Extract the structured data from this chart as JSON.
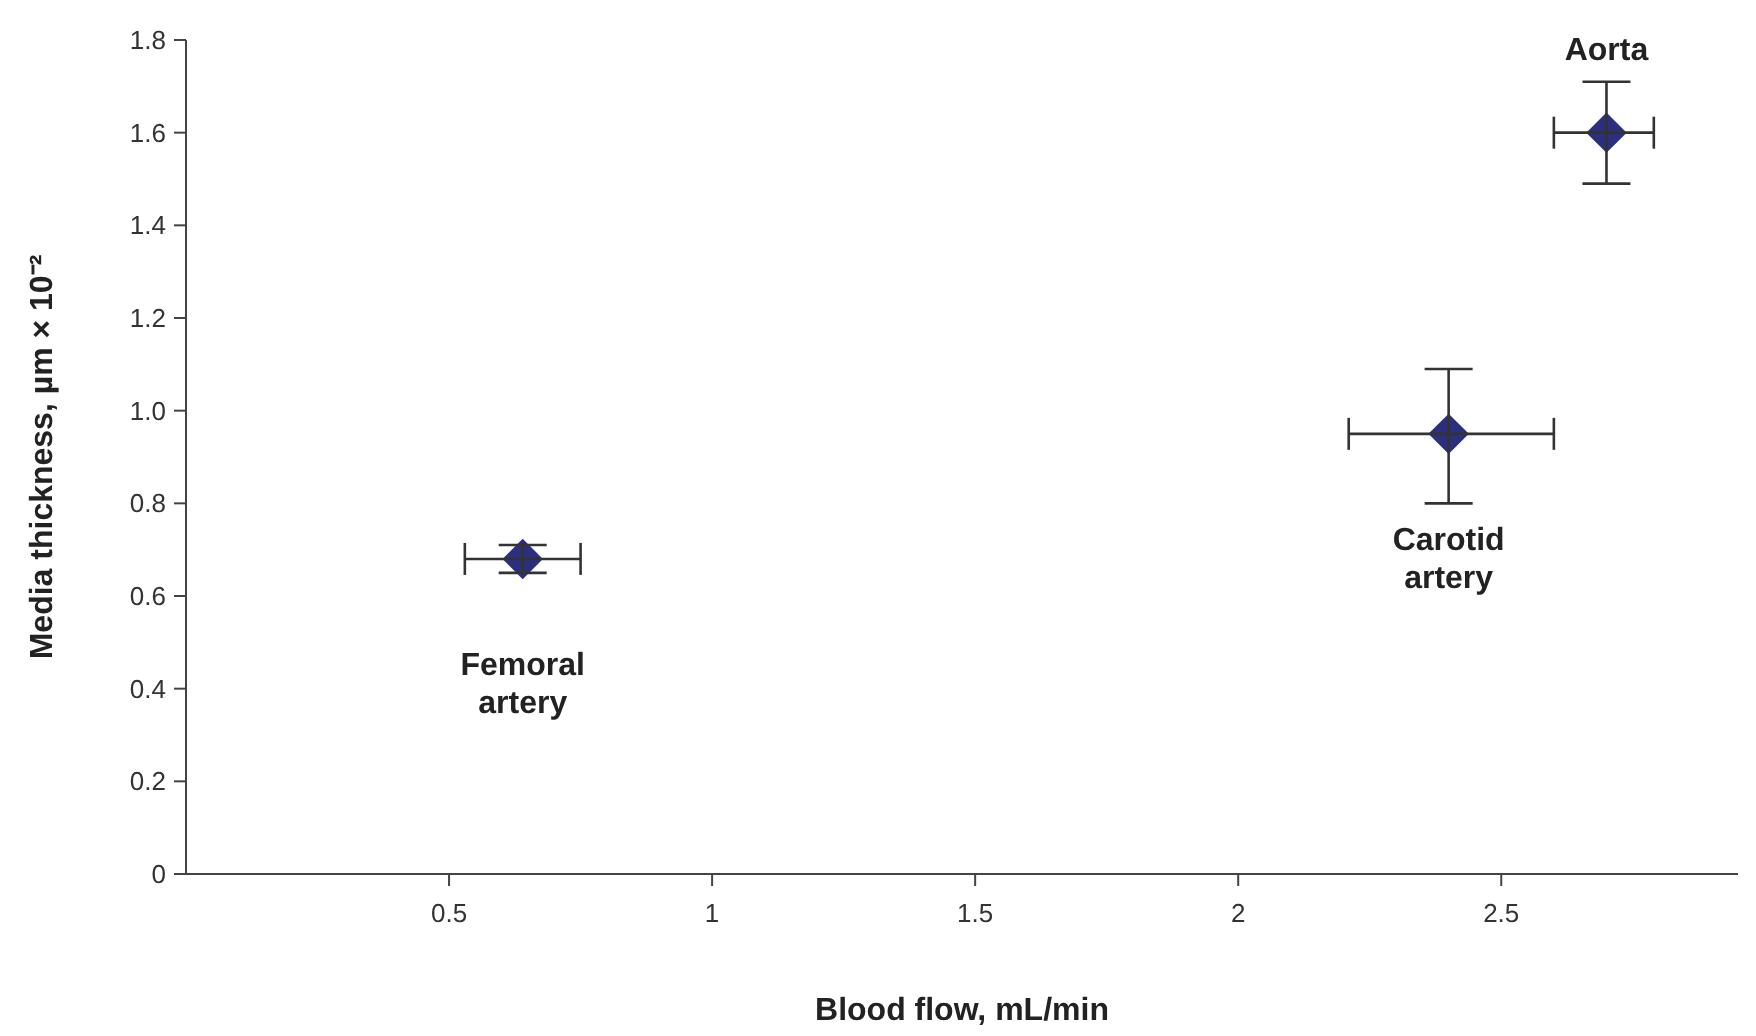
{
  "chart_data": {
    "type": "scatter",
    "xlabel": "Blood flow, mL/min",
    "ylabel": "Media thickness, µm × 10⁻²",
    "x": [
      0.64,
      2.4,
      2.7
    ],
    "values": [
      0.68,
      0.95,
      1.6
    ],
    "color": "#2b2f7e",
    "marker": "diamond",
    "xerrors": [
      [
        0.53,
        0.75
      ],
      [
        2.21,
        2.6
      ],
      [
        2.6,
        2.79
      ]
    ],
    "errors": [
      [
        0.65,
        0.71
      ],
      [
        0.8,
        1.09
      ],
      [
        1.49,
        1.71
      ]
    ],
    "xlim": [
      0,
      2.95
    ],
    "xticks": [
      0.5,
      1,
      1.5,
      2,
      2.5
    ],
    "ylim": [
      0,
      1.8
    ],
    "yticks": [
      0,
      {
        "value": 0.2,
        "label": "0.2"
      },
      {
        "value": 0.4,
        "label": "0.4"
      },
      {
        "value": 0.6,
        "label": "0.6"
      },
      {
        "value": 0.8,
        "label": "0.8"
      },
      {
        "value": 1,
        "label": "1.0"
      },
      {
        "value": 1.2,
        "label": "1.2"
      },
      {
        "value": 1.4,
        "label": "1.4"
      },
      {
        "value": 1.6,
        "label": "1.6"
      },
      {
        "value": 1.8,
        "label": "1.8"
      }
    ],
    "grid": false,
    "annotations": [
      {
        "text": "Femoral artery",
        "x": 0.64,
        "y": 0.68
      },
      {
        "text": "Carotid artery",
        "x": 2.4,
        "y": 0.95
      },
      {
        "text": "Aorta",
        "x": 2.7,
        "y": 1.6
      }
    ]
  }
}
